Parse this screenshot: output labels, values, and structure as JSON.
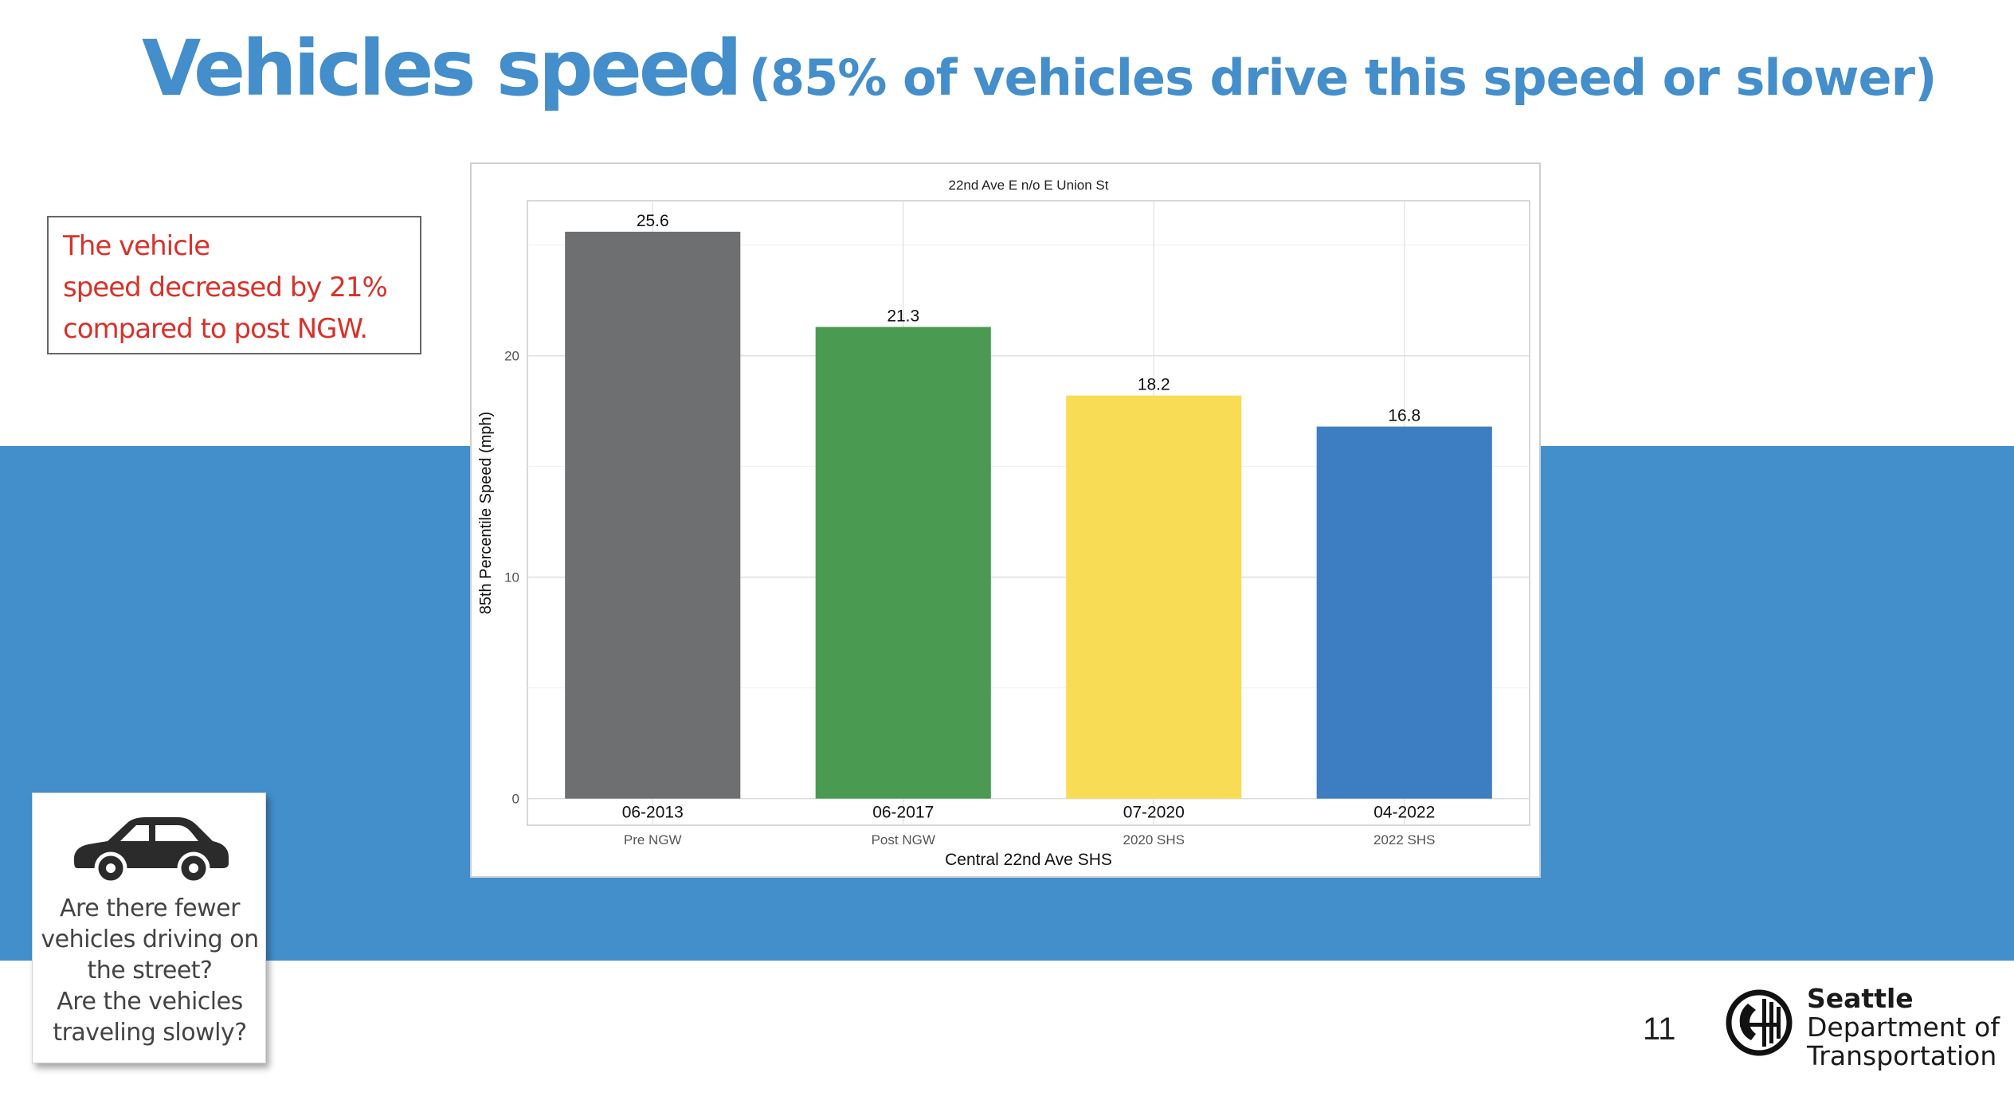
{
  "slide": {
    "title_main": "Vehicles speed",
    "title_sub": "(85% of vehicles drive this speed or slower)",
    "page_number": "11",
    "accent_color": "#438ECB",
    "band_color": "#428FCC"
  },
  "callout": {
    "lines": [
      "The vehicle",
      "speed decreased by 21%",
      "compared to post NGW."
    ],
    "color": "#D8322A"
  },
  "info_card": {
    "icon": "car-icon",
    "lines": [
      "Are there fewer",
      "vehicles driving on",
      "the street?",
      "Are the vehicles",
      "traveling slowly?"
    ]
  },
  "logo": {
    "icon": "seattle-seal-icon",
    "lines": [
      "Seattle",
      "Department of",
      "Transportation"
    ]
  },
  "chart_data": {
    "type": "bar",
    "title": "22nd Ave E n/o E Union St",
    "categories": [
      "06-2013",
      "06-2017",
      "07-2020",
      "04-2022"
    ],
    "subcategories": [
      "Pre NGW",
      "Post NGW",
      "2020 SHS",
      "2022 SHS"
    ],
    "values": [
      25.6,
      21.3,
      18.2,
      16.8
    ],
    "colors": [
      "#6E6F70",
      "#4A9A52",
      "#F8DC55",
      "#3C7EC1"
    ],
    "xlabel": "Central 22nd Ave SHS",
    "ylabel": "85th Percentile Speed (mph)",
    "ylim": [
      -1.2,
      27
    ],
    "yticks": [
      0,
      10,
      20
    ],
    "grid": true
  }
}
